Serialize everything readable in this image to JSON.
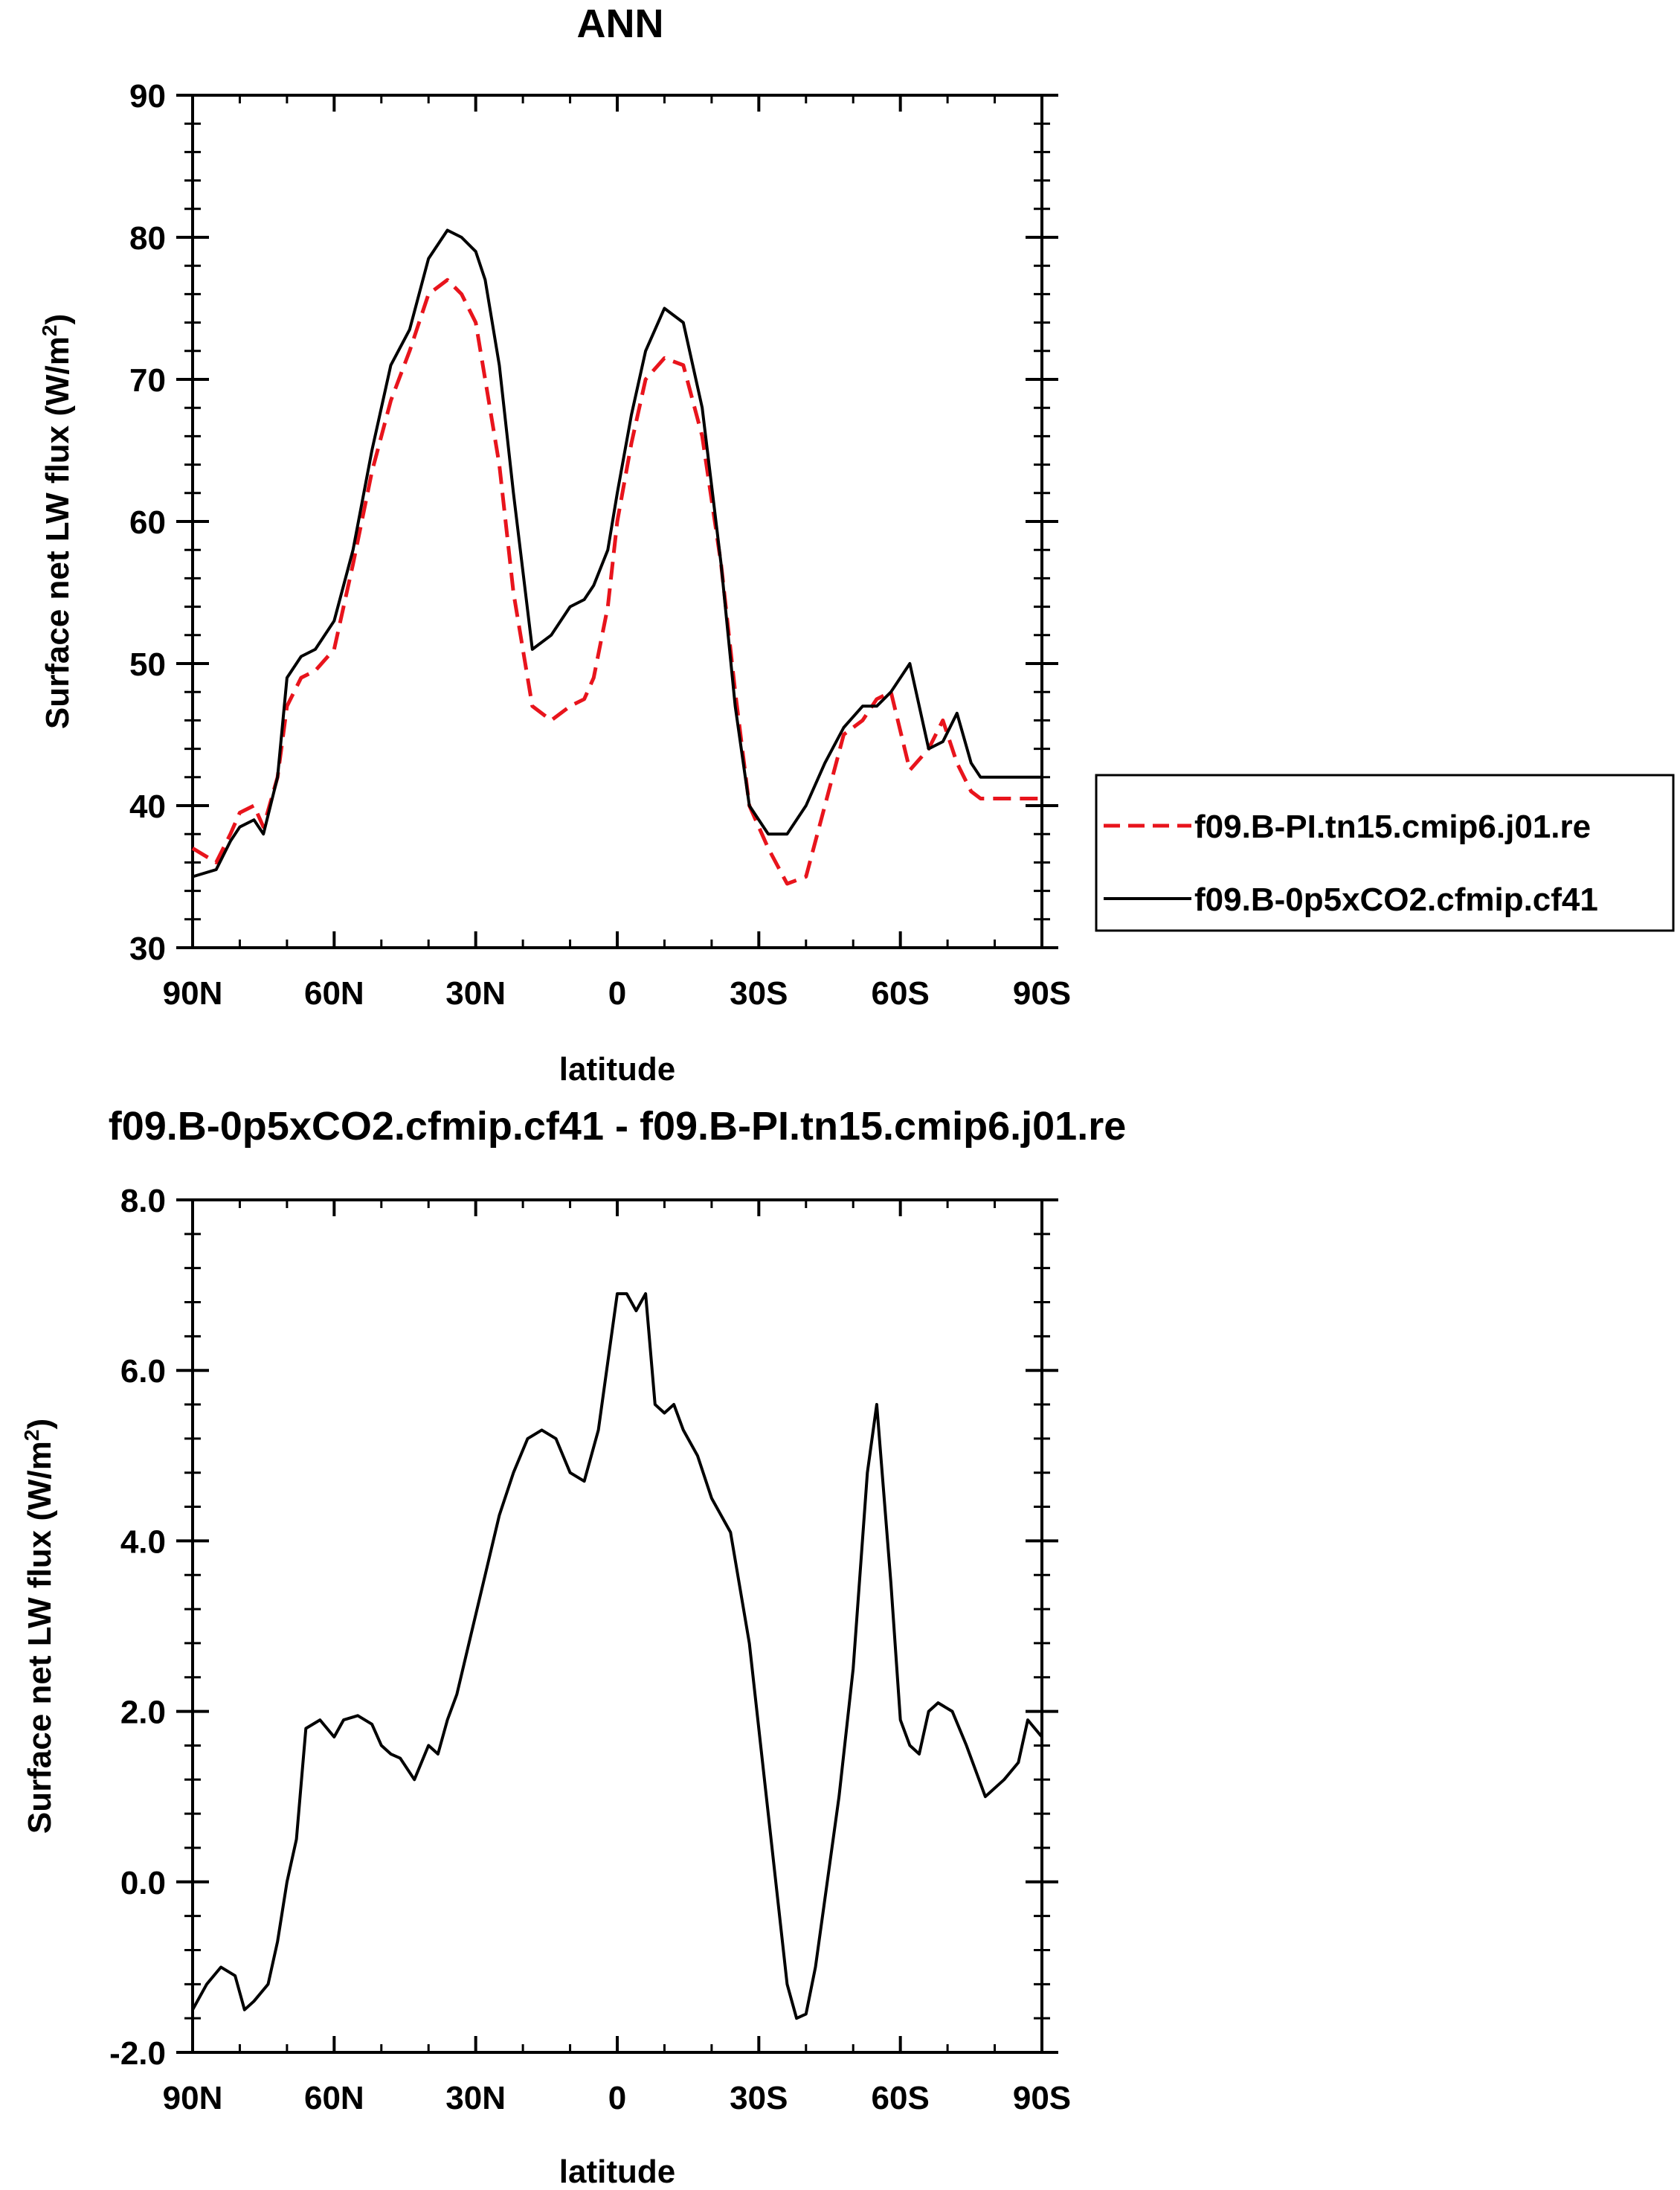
{
  "chart_data": [
    {
      "type": "line",
      "title": "ANN",
      "xlabel": "latitude",
      "ylabel": "Surface net LW flux (W/m²)",
      "ylabel_main": "Surface net LW flux (W/m",
      "ylabel_sup": "2",
      "ylabel_close": ")",
      "xlim": [
        90,
        -90
      ],
      "ylim": [
        30,
        90
      ],
      "x_ticks": [
        90,
        60,
        30,
        0,
        -30,
        -60,
        -90
      ],
      "x_tick_labels": [
        "90N",
        "60N",
        "30N",
        "0",
        "30S",
        "60S",
        "90S"
      ],
      "y_ticks": [
        30,
        40,
        50,
        60,
        70,
        80,
        90
      ],
      "y_tick_labels": [
        "30",
        "40",
        "50",
        "60",
        "70",
        "80",
        "90"
      ],
      "legend": "right",
      "series": [
        {
          "name": "f09.B-PI.tn15.cmip6.j01.re",
          "color": "#e8141c",
          "dash": "dashed",
          "x": [
            90,
            85,
            82,
            80,
            77,
            75,
            72,
            70,
            67,
            64,
            60,
            56,
            52,
            48,
            44,
            40,
            36,
            33,
            30,
            28,
            25,
            22,
            18,
            14,
            10,
            7,
            5,
            2,
            0,
            -3,
            -6,
            -10,
            -14,
            -18,
            -22,
            -25,
            -28,
            -32,
            -36,
            -40,
            -44,
            -48,
            -52,
            -55,
            -58,
            -62,
            -66,
            -69,
            -72,
            -75,
            -77,
            -80,
            -82,
            -84,
            -86,
            -88,
            -90
          ],
          "y": [
            37,
            36,
            38,
            39.5,
            40,
            38.5,
            42,
            47,
            49,
            49.5,
            51,
            57,
            63.5,
            68.5,
            72,
            76,
            77,
            76,
            74,
            70,
            64,
            55,
            47,
            46,
            47,
            47.5,
            49,
            54,
            60,
            65.5,
            70,
            71.5,
            71,
            66,
            57,
            48,
            40,
            37,
            34.5,
            35,
            40,
            45,
            46,
            47.5,
            48,
            42.5,
            44,
            46,
            43,
            41,
            40.5,
            40.5,
            40.5,
            40.5,
            40.5,
            40.5,
            40.5
          ]
        },
        {
          "name": "f09.B-0p5xCO2.cfmip.cf41",
          "color": "#000000",
          "dash": "solid",
          "x": [
            90,
            85,
            82,
            80,
            77,
            75,
            72,
            70,
            67,
            64,
            60,
            56,
            52,
            48,
            44,
            40,
            36,
            33,
            30,
            28,
            25,
            22,
            18,
            14,
            10,
            7,
            5,
            2,
            0,
            -3,
            -6,
            -10,
            -14,
            -18,
            -22,
            -25,
            -28,
            -32,
            -36,
            -40,
            -44,
            -48,
            -52,
            -55,
            -58,
            -62,
            -66,
            -69,
            -72,
            -75,
            -77,
            -80,
            -82,
            -84,
            -86,
            -88,
            -90
          ],
          "y": [
            35,
            35.5,
            37.5,
            38.5,
            39,
            38,
            42,
            49,
            50.5,
            51,
            53,
            58,
            65,
            71,
            73.5,
            78.5,
            80.5,
            80,
            79,
            77,
            71,
            62,
            51,
            52,
            54,
            54.5,
            55.5,
            58,
            62,
            67.5,
            72,
            75,
            74,
            68,
            57,
            47,
            40,
            38,
            38,
            40,
            43,
            45.5,
            47,
            47,
            48,
            50,
            44,
            44.5,
            46.5,
            43,
            42,
            42,
            42,
            42,
            42,
            42,
            42
          ]
        }
      ]
    },
    {
      "type": "line",
      "title": "f09.B-0p5xCO2.cfmip.cf41 - f09.B-PI.tn15.cmip6.j01.re",
      "xlabel": "latitude",
      "ylabel": "Surface net LW flux (W/m²)",
      "ylabel_main": "Surface net LW flux (W/m",
      "ylabel_sup": "2",
      "ylabel_close": ")",
      "xlim": [
        90,
        -90
      ],
      "ylim": [
        -2,
        8
      ],
      "x_ticks": [
        90,
        60,
        30,
        0,
        -30,
        -60,
        -90
      ],
      "x_tick_labels": [
        "90N",
        "60N",
        "30N",
        "0",
        "30S",
        "60S",
        "90S"
      ],
      "y_ticks": [
        -2,
        0,
        2,
        4,
        6,
        8
      ],
      "y_tick_labels": [
        "-2.0",
        "0.0",
        "2.0",
        "4.0",
        "6.0",
        "8.0"
      ],
      "series": [
        {
          "name": "f09.B-0p5xCO2.cfmip.cf41 - f09.B-PI.tn15.cmip6.j01.re",
          "color": "#000000",
          "dash": "solid",
          "x": [
            90,
            87,
            84,
            81,
            79,
            77,
            74,
            72,
            70,
            68,
            66,
            63,
            60,
            58,
            55,
            52,
            50,
            48,
            46,
            43,
            40,
            38,
            36,
            34,
            31,
            28,
            25,
            22,
            19,
            16,
            13,
            10,
            7,
            4,
            0,
            -2,
            -4,
            -6,
            -8,
            -10,
            -12,
            -14,
            -17,
            -20,
            -24,
            -28,
            -32,
            -36,
            -38,
            -40,
            -42,
            -44,
            -47,
            -50,
            -53,
            -55,
            -58,
            -60,
            -62,
            -64,
            -66,
            -68,
            -71,
            -74,
            -76,
            -78,
            -80,
            -82,
            -85,
            -87,
            -90
          ],
          "y": [
            -1.5,
            -1.2,
            -1.0,
            -1.1,
            -1.5,
            -1.4,
            -1.2,
            -0.7,
            0.0,
            0.5,
            1.8,
            1.9,
            1.7,
            1.9,
            1.95,
            1.85,
            1.6,
            1.5,
            1.45,
            1.2,
            1.6,
            1.5,
            1.9,
            2.2,
            2.9,
            3.6,
            4.3,
            4.8,
            5.2,
            5.3,
            5.2,
            4.8,
            4.7,
            5.3,
            6.9,
            6.9,
            6.7,
            6.9,
            5.6,
            5.5,
            5.6,
            5.3,
            5.0,
            4.5,
            4.1,
            2.8,
            0.8,
            -1.2,
            -1.6,
            -1.55,
            -1.0,
            -0.2,
            1.0,
            2.5,
            4.8,
            5.6,
            3.5,
            1.9,
            1.6,
            1.5,
            2.0,
            2.1,
            2.0,
            1.6,
            1.3,
            1.0,
            1.1,
            1.2,
            1.4,
            1.9,
            1.7
          ]
        }
      ]
    }
  ]
}
